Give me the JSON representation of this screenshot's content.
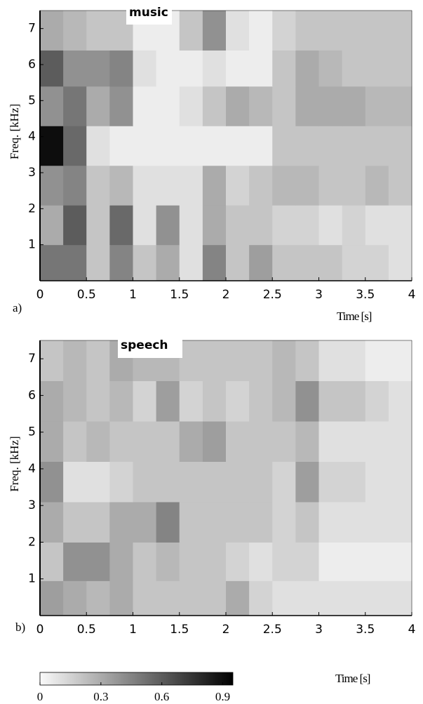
{
  "chart_data": [
    {
      "type": "heatmap",
      "title": "music",
      "panel": "a)",
      "xlabel": "Time [s]",
      "ylabel": "Freq. [kHz]",
      "xlim": [
        0,
        4
      ],
      "xticks": [
        0,
        0.5,
        1,
        1.5,
        2,
        2.5,
        3,
        3.5,
        4
      ],
      "ylim": [
        0,
        7.5
      ],
      "yticks": [
        1,
        2,
        3,
        4,
        5,
        6,
        7
      ],
      "xbins": [
        0,
        0.25,
        0.5,
        0.75,
        1,
        1.25,
        1.5,
        1.75,
        2,
        2.25,
        2.5,
        2.75,
        3,
        3.25,
        3.5,
        3.75,
        4
      ],
      "ybins": [
        0,
        1,
        2.1,
        3.2,
        4.3,
        5.4,
        6.4,
        7.5
      ],
      "values": [
        [
          0.5,
          0.5,
          0.2,
          0.45,
          0.2,
          0.3,
          0.1,
          0.45,
          0.2,
          0.35,
          0.2,
          0.2,
          0.2,
          0.15,
          0.15,
          0.1
        ],
        [
          0.3,
          0.6,
          0.2,
          0.55,
          0.1,
          0.4,
          0.1,
          0.3,
          0.2,
          0.2,
          0.15,
          0.15,
          0.1,
          0.15,
          0.1,
          0.1
        ],
        [
          0.4,
          0.45,
          0.2,
          0.25,
          0.1,
          0.1,
          0.1,
          0.3,
          0.15,
          0.2,
          0.25,
          0.25,
          0.2,
          0.2,
          0.25,
          0.2
        ],
        [
          0.9,
          0.55,
          0.1,
          0.05,
          0.05,
          0.05,
          0.05,
          0.05,
          0.05,
          0.05,
          0.2,
          0.2,
          0.2,
          0.2,
          0.2,
          0.2
        ],
        [
          0.4,
          0.5,
          0.3,
          0.4,
          0.05,
          0.05,
          0.1,
          0.2,
          0.3,
          0.25,
          0.2,
          0.3,
          0.3,
          0.3,
          0.25,
          0.25
        ],
        [
          0.6,
          0.4,
          0.4,
          0.45,
          0.1,
          0.05,
          0.05,
          0.1,
          0.05,
          0.05,
          0.2,
          0.3,
          0.25,
          0.2,
          0.2,
          0.2
        ],
        [
          0.3,
          0.25,
          0.2,
          0.2,
          0.05,
          0.05,
          0.2,
          0.4,
          0.1,
          0.05,
          0.15,
          0.2,
          0.2,
          0.2,
          0.2,
          0.2
        ]
      ]
    },
    {
      "type": "heatmap",
      "title": "speech",
      "panel": "b)",
      "xlabel": "Time [s]",
      "ylabel": "Freq. [kHz]",
      "xlim": [
        0,
        4
      ],
      "xticks": [
        0,
        0.5,
        1,
        1.5,
        2,
        2.5,
        3,
        3.5,
        4
      ],
      "ylim": [
        0,
        7.5
      ],
      "yticks": [
        1,
        2,
        3,
        4,
        5,
        6,
        7
      ],
      "xbins": [
        0,
        0.25,
        0.5,
        0.75,
        1,
        1.25,
        1.5,
        1.75,
        2,
        2.25,
        2.5,
        2.75,
        3,
        3.25,
        3.5,
        3.75,
        4
      ],
      "ybins": [
        0,
        0.95,
        2,
        3.1,
        4.2,
        5.3,
        6.4,
        7.5
      ],
      "values": [
        [
          0.35,
          0.3,
          0.25,
          0.3,
          0.2,
          0.2,
          0.2,
          0.2,
          0.3,
          0.15,
          0.1,
          0.1,
          0.1,
          0.1,
          0.1,
          0.1
        ],
        [
          0.2,
          0.4,
          0.4,
          0.3,
          0.2,
          0.25,
          0.2,
          0.2,
          0.15,
          0.1,
          0.15,
          0.15,
          0.05,
          0.05,
          0.05,
          0.05
        ],
        [
          0.3,
          0.2,
          0.2,
          0.3,
          0.3,
          0.45,
          0.2,
          0.2,
          0.2,
          0.2,
          0.15,
          0.2,
          0.1,
          0.1,
          0.1,
          0.1
        ],
        [
          0.4,
          0.1,
          0.1,
          0.15,
          0.2,
          0.2,
          0.2,
          0.2,
          0.2,
          0.2,
          0.15,
          0.35,
          0.15,
          0.15,
          0.1,
          0.1
        ],
        [
          0.3,
          0.2,
          0.25,
          0.2,
          0.2,
          0.2,
          0.3,
          0.35,
          0.2,
          0.2,
          0.2,
          0.25,
          0.1,
          0.1,
          0.1,
          0.1
        ],
        [
          0.3,
          0.25,
          0.2,
          0.25,
          0.15,
          0.35,
          0.15,
          0.2,
          0.15,
          0.2,
          0.25,
          0.4,
          0.2,
          0.2,
          0.15,
          0.1
        ],
        [
          0.2,
          0.25,
          0.2,
          0.3,
          0.25,
          0.25,
          0.2,
          0.2,
          0.2,
          0.2,
          0.25,
          0.2,
          0.1,
          0.1,
          0.05,
          0.05
        ]
      ]
    }
  ],
  "colorbar": {
    "colormap": "gray_r",
    "lim": [
      0,
      0.95
    ],
    "ticks": [
      0,
      0.3,
      0.6,
      0.9
    ]
  }
}
